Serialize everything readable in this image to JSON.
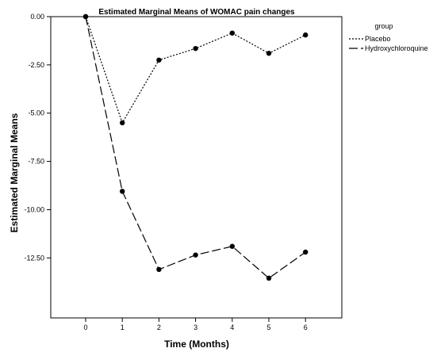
{
  "chart_data": {
    "type": "line",
    "title": "Estimated Marginal Means of WOMAC pain changes",
    "xlabel": "Time (Months)",
    "ylabel": "Estimated Marginal Means",
    "x": [
      0,
      1,
      2,
      3,
      4,
      5,
      6
    ],
    "xlim": [
      -1,
      7
    ],
    "ylim": [
      -14.5,
      0
    ],
    "yticks": [
      0,
      -2.5,
      -5,
      -7.5,
      -10,
      -12.5
    ],
    "ytick_labels": [
      "0.00",
      "-2.50",
      "-5.00",
      "-7.50",
      "-10.00",
      "-12.50"
    ],
    "xtick_labels": [
      "0",
      "1",
      "2",
      "3",
      "4",
      "5",
      "6"
    ],
    "grid": false,
    "legend": {
      "title": "group",
      "position": "right"
    },
    "series": [
      {
        "name": "Placebo",
        "line_style": "dotted",
        "values": [
          0,
          -5.5,
          -2.25,
          -1.65,
          -0.85,
          -1.9,
          -0.95
        ]
      },
      {
        "name": "Hydroxychloroquine",
        "line_style": "dashed",
        "values": [
          0,
          -9.05,
          -13.1,
          -12.35,
          -11.9,
          -13.55,
          -12.2
        ]
      }
    ]
  }
}
